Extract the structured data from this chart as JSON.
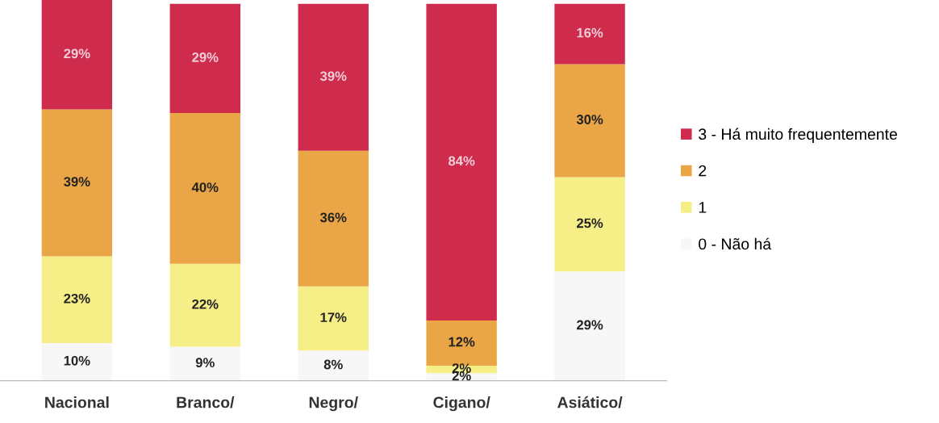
{
  "chart_data": {
    "type": "bar",
    "stacked": true,
    "legend": "right",
    "grid": false,
    "categories": [
      "Nacional",
      "Branco/",
      "Negro/",
      "Cigano/",
      "Asiático/"
    ],
    "series": [
      {
        "name": "0 - Não há",
        "color": "#f7f7f7",
        "values": [
          10,
          9,
          8,
          2,
          29
        ],
        "value_labels": [
          "10%",
          "9%",
          "8%",
          "2%",
          "29%"
        ]
      },
      {
        "name": "1",
        "color": "#f6ee86",
        "values": [
          23,
          22,
          17,
          2,
          25
        ],
        "value_labels": [
          "23%",
          "22%",
          "17%",
          "2%",
          "25%"
        ]
      },
      {
        "name": "2",
        "color": "#eaa646",
        "values": [
          39,
          40,
          36,
          12,
          30
        ],
        "value_labels": [
          "39%",
          "40%",
          "36%",
          "12%",
          "30%"
        ]
      },
      {
        "name": "3 - Há muito frequentemente",
        "color": "#cf2b4d",
        "values": [
          29,
          29,
          39,
          84,
          16
        ],
        "value_labels": [
          "29%",
          "29%",
          "39%",
          "84%",
          "16%"
        ]
      }
    ]
  }
}
